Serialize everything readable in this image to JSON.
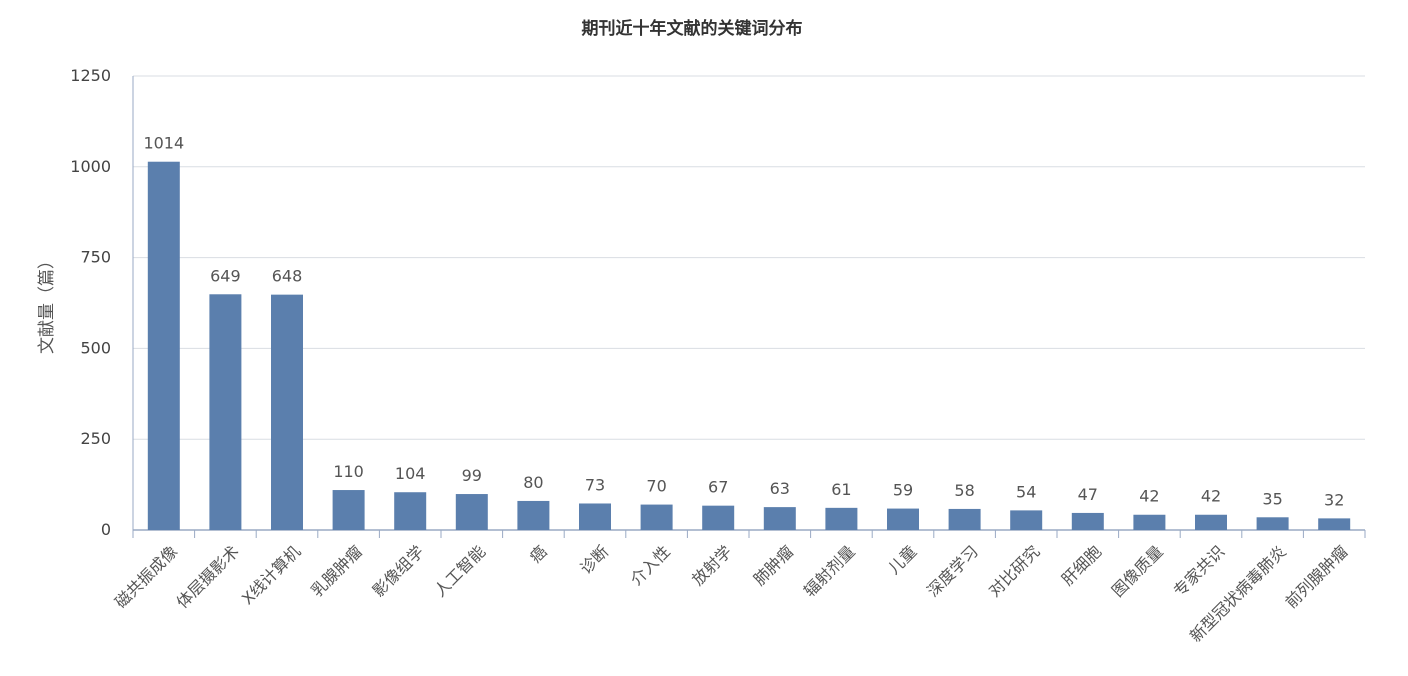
{
  "chart_data": {
    "type": "bar",
    "title": "期刊近十年文献的关键词分布",
    "xlabel": "",
    "ylabel": "文献量（篇）",
    "ylim": [
      0,
      1250
    ],
    "yticks": [
      0,
      250,
      500,
      750,
      1000,
      1250
    ],
    "grid": true,
    "bar_color": "#5b7fad",
    "categories": [
      "磁共振成像",
      "体层摄影术",
      "X线计算机",
      "乳腺肿瘤",
      "影像组学",
      "人工智能",
      "癌",
      "诊断",
      "介入性",
      "放射学",
      "肺肿瘤",
      "辐射剂量",
      "儿童",
      "深度学习",
      "对比研究",
      "肝细胞",
      "图像质量",
      "专家共识",
      "新型冠状病毒肺炎",
      "前列腺肿瘤"
    ],
    "values": [
      1014,
      649,
      648,
      110,
      104,
      99,
      80,
      73,
      70,
      67,
      63,
      61,
      59,
      58,
      54,
      47,
      42,
      42,
      35,
      32
    ]
  }
}
